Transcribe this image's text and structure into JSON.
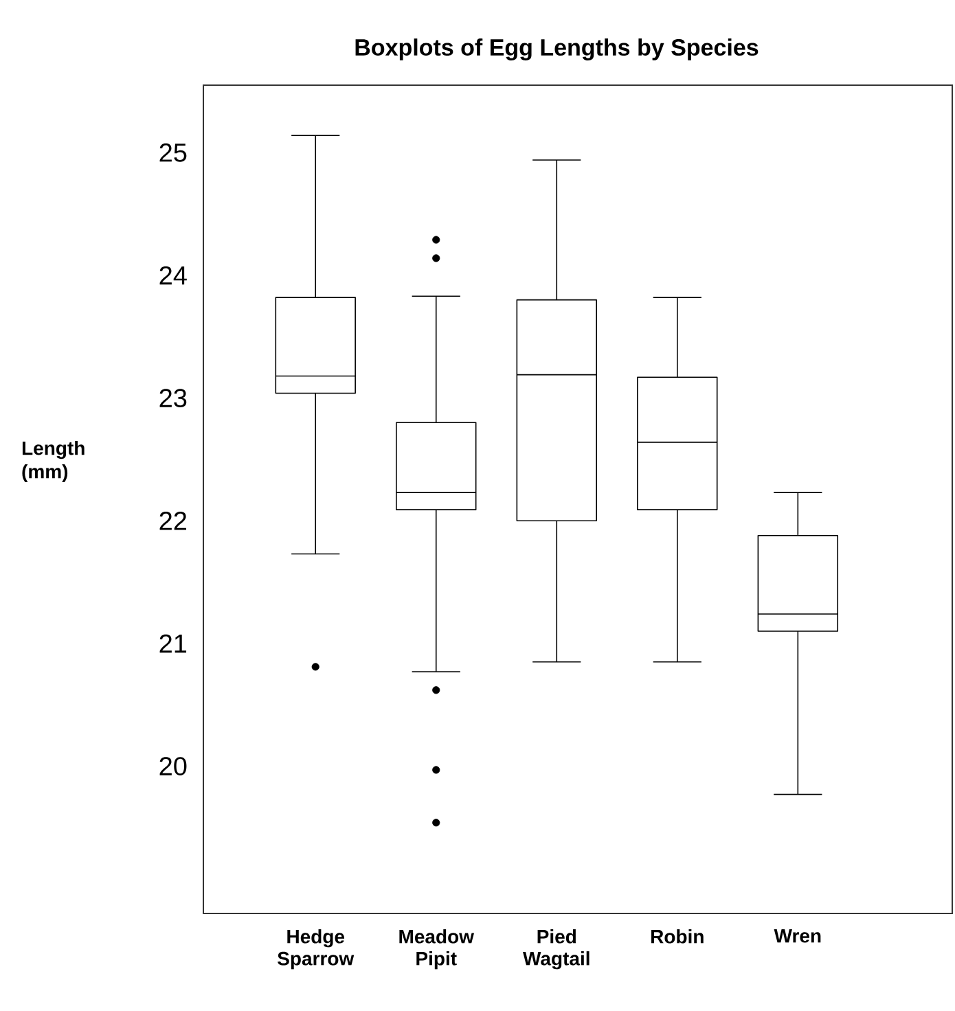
{
  "chart_data": {
    "type": "box",
    "title": "Boxplots of Egg Lengths by Species",
    "ylabel": "Length (mm)",
    "categories": [
      "Hedge Sparrow",
      "Meadow Pipit",
      "Pied Wagtail",
      "Robin",
      "Wren"
    ],
    "boxes": [
      {
        "low": 21.73,
        "q1": 23.04,
        "median": 23.18,
        "q3": 23.82,
        "high": 25.14,
        "outliers": [
          20.81
        ]
      },
      {
        "low": 20.77,
        "q1": 22.09,
        "median": 22.23,
        "q3": 22.8,
        "high": 23.83,
        "outliers": [
          24.29,
          24.14,
          20.62,
          19.97,
          19.54
        ]
      },
      {
        "low": 20.85,
        "q1": 22.0,
        "median": 23.19,
        "q3": 23.8,
        "high": 24.94
      },
      {
        "low": 20.85,
        "q1": 22.09,
        "median": 22.64,
        "q3": 23.17,
        "high": 23.82
      },
      {
        "low": 19.77,
        "q1": 21.1,
        "median": 21.24,
        "q3": 21.88,
        "high": 22.23
      }
    ],
    "ylim": [
      18.8,
      25.55
    ],
    "yticks": [
      20,
      21,
      22,
      23,
      24,
      25
    ]
  }
}
